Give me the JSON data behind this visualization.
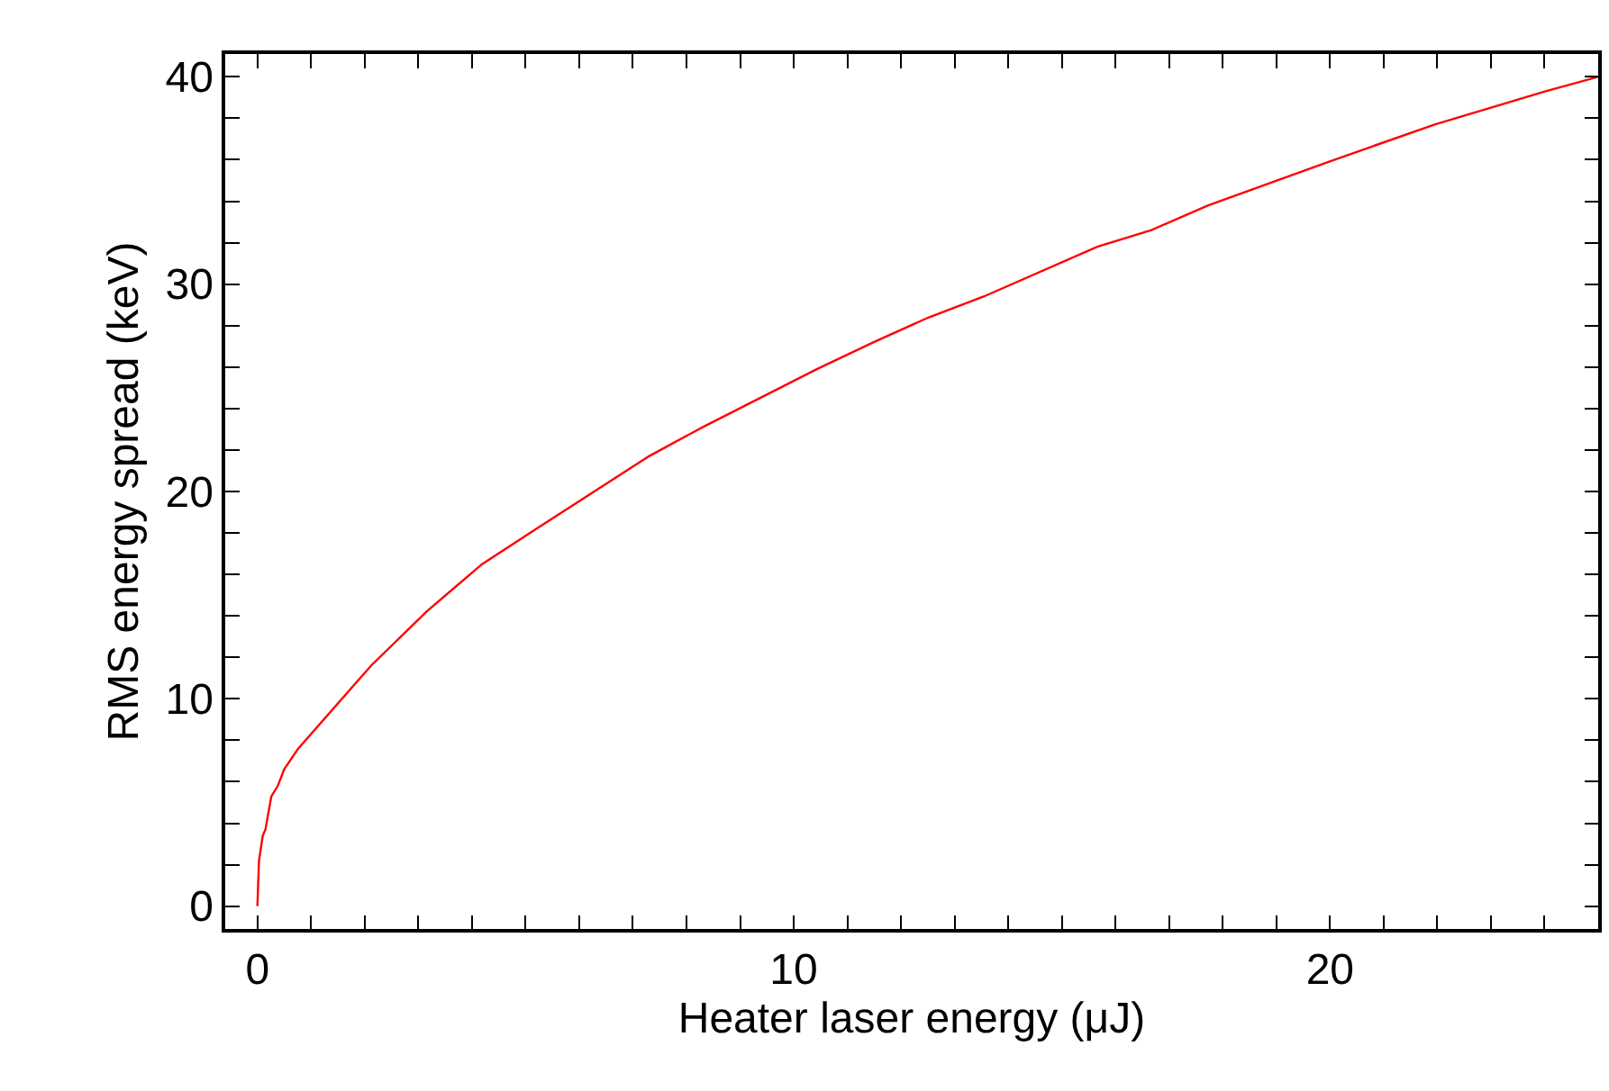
{
  "chart_data": {
    "type": "line",
    "xlabel": "Heater laser energy (μJ)",
    "ylabel": "RMS energy spread (keV)",
    "x": [
      0,
      0.03,
      0.1,
      0.15,
      0.26,
      0.38,
      0.5,
      0.76,
      2.12,
      3.15,
      4.19,
      5.2,
      7.3,
      8.3,
      10.43,
      11.49,
      12.52,
      13.54,
      15.66,
      16.66,
      17.73,
      19.97,
      21.95,
      24.02,
      25.0
    ],
    "series": [
      {
        "color": "#ff0000",
        "values": [
          0,
          2.2,
          3.4,
          3.7,
          5.3,
          5.8,
          6.6,
          7.6,
          11.6,
          14.2,
          16.5,
          18.2,
          21.7,
          23.1,
          25.9,
          27.2,
          28.4,
          29.4,
          31.8,
          32.6,
          33.8,
          35.9,
          37.7,
          39.3,
          40.0
        ]
      }
    ],
    "xlim": [
      -0.6,
      25
    ],
    "ylim": [
      -1.1,
      41.1
    ],
    "xticks": [
      0,
      {
        "value": 1,
        "label": null
      },
      {
        "value": 2,
        "label": null
      },
      {
        "value": 3,
        "label": null
      },
      {
        "value": 4,
        "label": null
      },
      {
        "value": 5,
        "label": null
      },
      {
        "value": 6,
        "label": null
      },
      {
        "value": 7,
        "label": null
      },
      {
        "value": 8,
        "label": null
      },
      {
        "value": 9,
        "label": null
      },
      10,
      {
        "value": 11,
        "label": null
      },
      {
        "value": 12,
        "label": null
      },
      {
        "value": 13,
        "label": null
      },
      {
        "value": 14,
        "label": null
      },
      {
        "value": 15,
        "label": null
      },
      {
        "value": 16,
        "label": null
      },
      {
        "value": 17,
        "label": null
      },
      {
        "value": 18,
        "label": null
      },
      {
        "value": 19,
        "label": null
      },
      20,
      {
        "value": 21,
        "label": null
      },
      {
        "value": 22,
        "label": null
      },
      {
        "value": 23,
        "label": null
      },
      {
        "value": 24,
        "label": null
      }
    ],
    "yticks": [
      0,
      {
        "value": 2,
        "label": null
      },
      {
        "value": 4,
        "label": null
      },
      {
        "value": 6,
        "label": null
      },
      {
        "value": 8,
        "label": null
      },
      10,
      {
        "value": 12,
        "label": null
      },
      {
        "value": 14,
        "label": null
      },
      {
        "value": 16,
        "label": null
      },
      {
        "value": 18,
        "label": null
      },
      20,
      {
        "value": 22,
        "label": null
      },
      {
        "value": 24,
        "label": null
      },
      {
        "value": 26,
        "label": null
      },
      {
        "value": 28,
        "label": null
      },
      30,
      {
        "value": 32,
        "label": null
      },
      {
        "value": 34,
        "label": null
      },
      {
        "value": 36,
        "label": null
      },
      {
        "value": 38,
        "label": null
      },
      40
    ],
    "grid": false,
    "marker": "none",
    "line_style": "solid"
  }
}
